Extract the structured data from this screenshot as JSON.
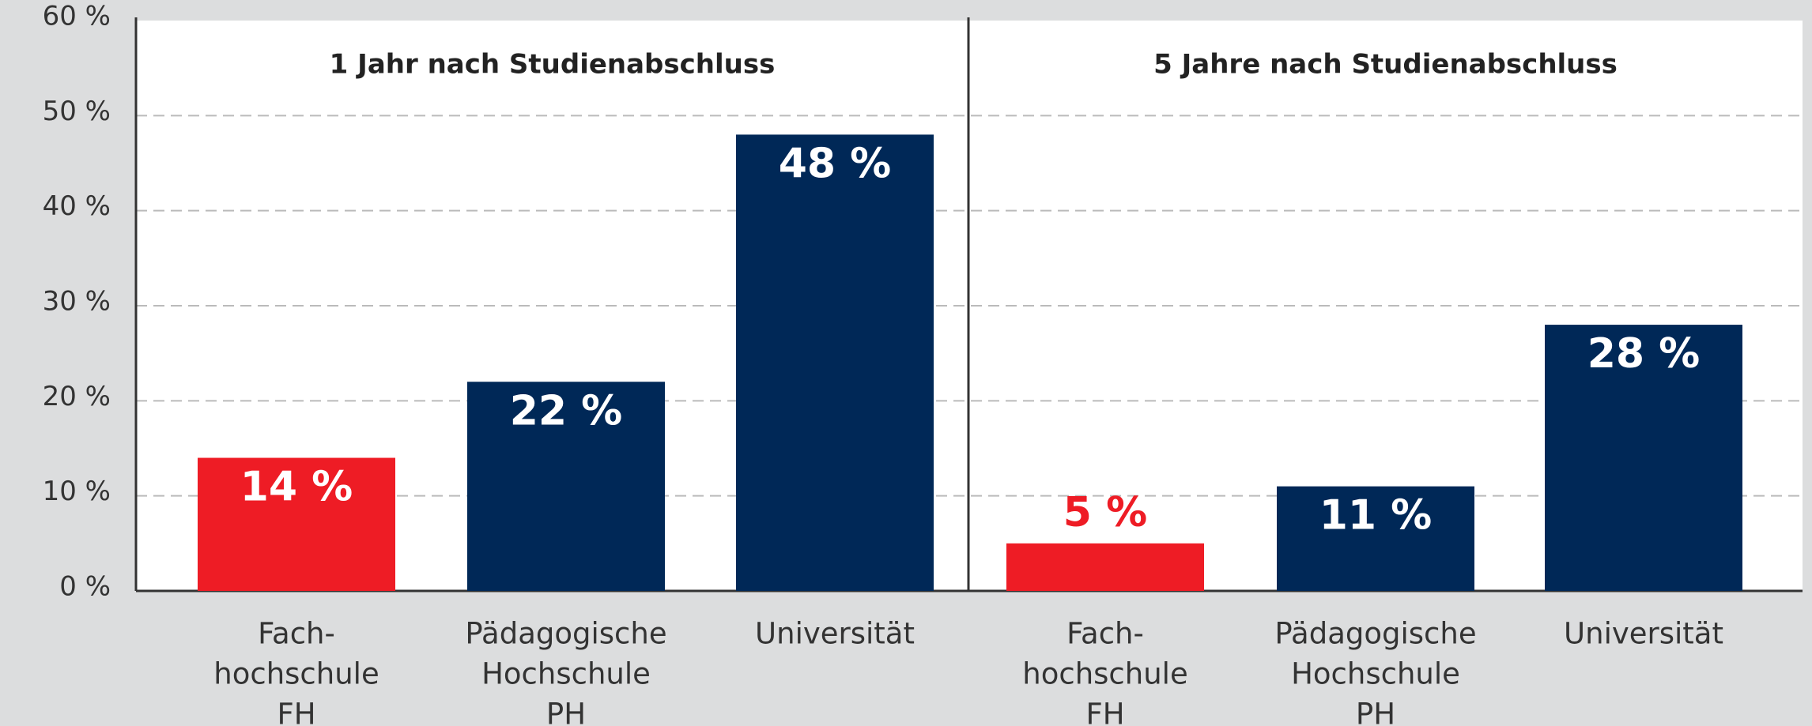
{
  "chart_data": [
    {
      "type": "bar",
      "title": "1 Jahr nach Studienabschluss",
      "categories": [
        [
          "Fach-",
          "hochschule",
          "FH"
        ],
        [
          "Pädagogische",
          "Hochschule",
          "PH"
        ],
        [
          "Universität"
        ]
      ],
      "values": [
        14,
        22,
        48
      ],
      "value_labels": [
        "14 %",
        "22 %",
        "48 %"
      ],
      "colors": [
        "#ee1c25",
        "#002857",
        "#002857"
      ],
      "ylim": [
        0,
        60
      ],
      "yticks": [
        {
          "value": 0,
          "label": "0 %"
        },
        {
          "value": 10,
          "label": "10 %"
        },
        {
          "value": 20,
          "label": "20 %"
        },
        {
          "value": 30,
          "label": "30 %"
        },
        {
          "value": 40,
          "label": "40 %"
        },
        {
          "value": 50,
          "label": "50 %"
        },
        {
          "value": 60,
          "label": "60 %"
        }
      ],
      "grid": true
    },
    {
      "type": "bar",
      "title": "5 Jahre nach Studienabschluss",
      "categories": [
        [
          "Fach-",
          "hochschule",
          "FH"
        ],
        [
          "Pädagogische",
          "Hochschule",
          "PH"
        ],
        [
          "Universität"
        ]
      ],
      "values": [
        5,
        11,
        28
      ],
      "value_labels": [
        "5 %",
        "11 %",
        "28 %"
      ],
      "colors": [
        "#ee1c25",
        "#002857",
        "#002857"
      ]
    }
  ]
}
